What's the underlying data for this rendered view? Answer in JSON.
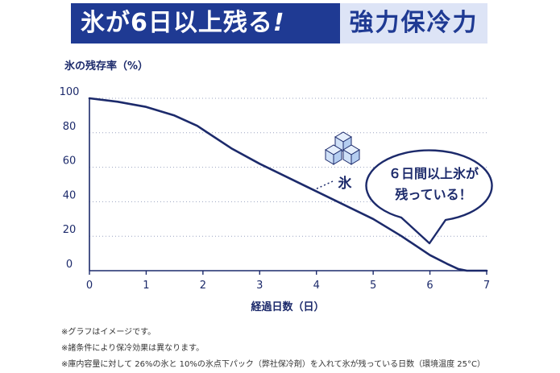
{
  "banner": {
    "headline": "氷が6日以上残る",
    "headline_mark": "!",
    "tagline": "強力保冷力"
  },
  "chart_data": {
    "type": "line",
    "ylabel": "氷の残存率（%）",
    "xlabel": "経過日数（日）",
    "xlim": [
      0,
      7
    ],
    "ylim": [
      0,
      100
    ],
    "x_ticks": [
      0,
      1,
      2,
      3,
      4,
      5,
      6,
      7
    ],
    "y_ticks": [
      0,
      20,
      40,
      60,
      80,
      100
    ],
    "grid": "horizontal dotted",
    "series": [
      {
        "color": "#1c2a6b",
        "x": [
          0,
          0.5,
          1,
          1.5,
          1.9,
          2.5,
          3,
          3.5,
          4,
          4.5,
          5,
          5.5,
          6,
          6.3,
          6.5,
          6.65,
          7
        ],
        "y": [
          100,
          98,
          95,
          90,
          84,
          71,
          62,
          54,
          46,
          38,
          30,
          20,
          9,
          4,
          1,
          0,
          0
        ]
      }
    ],
    "annotations": {
      "ice_label": "氷",
      "ice_point": {
        "x": 3.9,
        "y": 46
      },
      "callout_line1": "６日間以上氷が",
      "callout_line2": "残っている！"
    }
  },
  "notes": [
    "※グラフはイメージです。",
    "※諸条件により保冷効果は異なります。",
    "※庫内容量に対して 26%の氷と 10%の氷点下パック（弊社保冷剤）を入れて氷が残っている日数（環境温度 25°C）"
  ],
  "colors": {
    "banner_bg": "#1f3a93",
    "tagline_bg": "#dde4f6",
    "line": "#1c2a6b",
    "ice": "#cfe0f7"
  }
}
